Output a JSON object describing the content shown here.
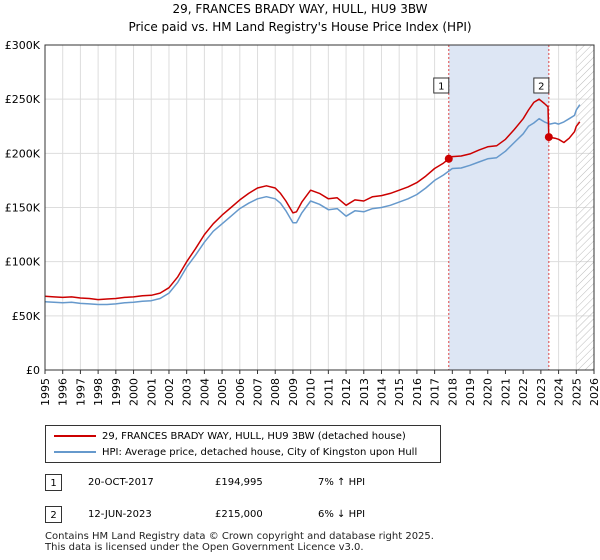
{
  "header": {
    "title": "29, FRANCES BRADY WAY, HULL, HU9 3BW",
    "subtitle": "Price paid vs. HM Land Registry's House Price Index (HPI)"
  },
  "colors": {
    "price": "#cc0000",
    "hpi": "#6699cc",
    "shade": "#dde6f4",
    "marker_line": "#dd4444"
  },
  "chart_data": {
    "type": "line",
    "ylim": [
      0,
      300000
    ],
    "xlim": [
      1995.0,
      2026.0
    ],
    "y_ticks": [
      {
        "value": 0,
        "label": "£0"
      },
      {
        "value": 50000,
        "label": "£50K"
      },
      {
        "value": 100000,
        "label": "£100K"
      },
      {
        "value": 150000,
        "label": "£150K"
      },
      {
        "value": 200000,
        "label": "£200K"
      },
      {
        "value": 250000,
        "label": "£250K"
      },
      {
        "value": 300000,
        "label": "£300K"
      }
    ],
    "x_ticks": [
      "1995",
      "1996",
      "1997",
      "1998",
      "1999",
      "2000",
      "2001",
      "2002",
      "2003",
      "2004",
      "2005",
      "2006",
      "2007",
      "2008",
      "2009",
      "2010",
      "2011",
      "2012",
      "2013",
      "2014",
      "2015",
      "2016",
      "2017",
      "2018",
      "2019",
      "2020",
      "2021",
      "2022",
      "2023",
      "2024",
      "2025",
      "2026"
    ],
    "shaded_period": [
      2017.8,
      2023.45
    ],
    "future_hatch_from": 2025.0,
    "series": [
      {
        "name": "29, FRANCES BRADY WAY, HULL, HU9 3BW (detached house)",
        "x": [
          1995.0,
          1995.5,
          1996.0,
          1996.5,
          1997.0,
          1997.5,
          1998.0,
          1998.5,
          1999.0,
          1999.5,
          2000.0,
          2000.5,
          2001.0,
          2001.5,
          2002.0,
          2002.5,
          2003.0,
          2003.5,
          2004.0,
          2004.5,
          2005.0,
          2005.5,
          2006.0,
          2006.5,
          2007.0,
          2007.5,
          2008.0,
          2008.3,
          2008.6,
          2009.0,
          2009.2,
          2009.5,
          2010.0,
          2010.5,
          2011.0,
          2011.5,
          2012.0,
          2012.5,
          2013.0,
          2013.5,
          2014.0,
          2014.5,
          2015.0,
          2015.5,
          2016.0,
          2016.5,
          2017.0,
          2017.5,
          2017.8,
          2018.0,
          2018.5,
          2019.0,
          2019.5,
          2020.0,
          2020.5,
          2021.0,
          2021.5,
          2022.0,
          2022.3,
          2022.6,
          2022.9,
          2023.2,
          2023.4,
          2023.45,
          2023.8,
          2024.0,
          2024.3,
          2024.6,
          2024.9,
          2025.0,
          2025.2
        ],
        "y": [
          68000,
          67500,
          67000,
          67500,
          66500,
          66000,
          65000,
          65500,
          66000,
          67000,
          67500,
          68500,
          69000,
          71000,
          76000,
          86000,
          100000,
          112000,
          125000,
          135000,
          143000,
          150000,
          157000,
          163000,
          168000,
          170000,
          168000,
          163000,
          156000,
          145000,
          146000,
          155000,
          166000,
          163000,
          158000,
          159000,
          152000,
          157000,
          156000,
          160000,
          161000,
          163000,
          166000,
          169000,
          173000,
          179000,
          186000,
          191000,
          194995,
          197000,
          197500,
          199500,
          203000,
          206000,
          207000,
          213000,
          222000,
          232000,
          240000,
          247000,
          250000,
          246000,
          243000,
          215000,
          214000,
          213000,
          210000,
          214000,
          220000,
          225000,
          229000
        ]
      },
      {
        "name": "HPI: Average price, detached house, City of Kingston upon Hull",
        "x": [
          1995.0,
          1995.5,
          1996.0,
          1996.5,
          1997.0,
          1997.5,
          1998.0,
          1998.5,
          1999.0,
          1999.5,
          2000.0,
          2000.5,
          2001.0,
          2001.5,
          2002.0,
          2002.5,
          2003.0,
          2003.5,
          2004.0,
          2004.5,
          2005.0,
          2005.5,
          2006.0,
          2006.5,
          2007.0,
          2007.5,
          2008.0,
          2008.3,
          2008.6,
          2009.0,
          2009.2,
          2009.5,
          2010.0,
          2010.5,
          2011.0,
          2011.5,
          2012.0,
          2012.5,
          2013.0,
          2013.5,
          2014.0,
          2014.5,
          2015.0,
          2015.5,
          2016.0,
          2016.5,
          2017.0,
          2017.5,
          2018.0,
          2018.5,
          2019.0,
          2019.5,
          2020.0,
          2020.5,
          2021.0,
          2021.5,
          2022.0,
          2022.3,
          2022.6,
          2022.9,
          2023.2,
          2023.5,
          2023.8,
          2024.0,
          2024.3,
          2024.6,
          2024.9,
          2025.0,
          2025.2
        ],
        "y": [
          63000,
          62500,
          62000,
          62500,
          61500,
          61000,
          60500,
          60500,
          61000,
          62000,
          62500,
          63500,
          64000,
          66000,
          71000,
          81000,
          95000,
          106000,
          118000,
          128000,
          135000,
          142000,
          149000,
          154000,
          158000,
          160000,
          158000,
          154000,
          147000,
          136000,
          136000,
          145000,
          156000,
          153000,
          148000,
          149000,
          142000,
          147000,
          146000,
          149000,
          150000,
          152000,
          155000,
          158000,
          162000,
          168000,
          175000,
          180000,
          186000,
          186500,
          189000,
          192000,
          195000,
          196000,
          202000,
          210000,
          218000,
          225000,
          228000,
          232000,
          229000,
          227000,
          228000,
          227000,
          229000,
          232000,
          235000,
          240000,
          245000
        ]
      }
    ],
    "annotations": [
      {
        "label": "1",
        "x": 2017.8,
        "price": 194995
      },
      {
        "label": "2",
        "x": 2023.45,
        "price": 215000
      }
    ]
  },
  "legend": {
    "items": [
      {
        "label": "29, FRANCES BRADY WAY, HULL, HU9 3BW (detached house)"
      },
      {
        "label": "HPI: Average price, detached house, City of Kingston upon Hull"
      }
    ]
  },
  "sales": [
    {
      "num": "1",
      "date": "20-OCT-2017",
      "price": "£194,995",
      "hpi": "7% ↑ HPI"
    },
    {
      "num": "2",
      "date": "12-JUN-2023",
      "price": "£215,000",
      "hpi": "6% ↓ HPI"
    }
  ],
  "footer": {
    "line1": "Contains HM Land Registry data © Crown copyright and database right 2025.",
    "line2": "This data is licensed under the Open Government Licence v3.0."
  }
}
